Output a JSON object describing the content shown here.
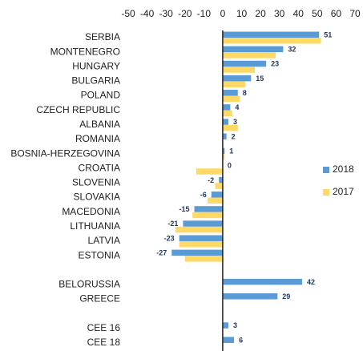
{
  "chart_data": {
    "type": "bar",
    "orientation": "horizontal",
    "categories": [
      "SERBIA",
      "MONTENEGRO",
      "HUNGARY",
      "BULGARIA",
      "POLAND",
      "CZECH REPUBLIC",
      "ALBANIA",
      "ROMANIA",
      "BOSNIA-HERZEGOVINA",
      "CROATIA",
      "SLOVENIA",
      "SLOVAKIA",
      "MACEDONIA",
      "LITHUANIA",
      "LATVIA",
      "ESTONIA",
      null,
      "BELORUSSIA",
      "GREECE",
      null,
      "CEE 16",
      "CEE 18"
    ],
    "series": [
      {
        "name": "2018",
        "color": "#5b9bd5",
        "data_labels": true,
        "values": [
          51,
          32,
          23,
          15,
          8,
          4,
          3,
          2,
          1,
          0,
          -2,
          -6,
          -15,
          -21,
          -23,
          -27,
          null,
          42,
          29,
          null,
          3,
          6
        ]
      },
      {
        "name": "2017",
        "color": "#ffd966",
        "values": [
          52,
          28,
          17,
          12,
          9,
          5,
          8,
          null,
          1,
          -14,
          -4,
          -8,
          -16,
          -25,
          -23,
          -20,
          null,
          null,
          null,
          null,
          null,
          null
        ]
      }
    ],
    "xlim": [
      -50,
      70
    ],
    "xticks": [
      -50,
      -40,
      -30,
      -20,
      -10,
      0,
      10,
      20,
      30,
      40,
      50,
      60,
      70
    ],
    "legend": "right"
  }
}
